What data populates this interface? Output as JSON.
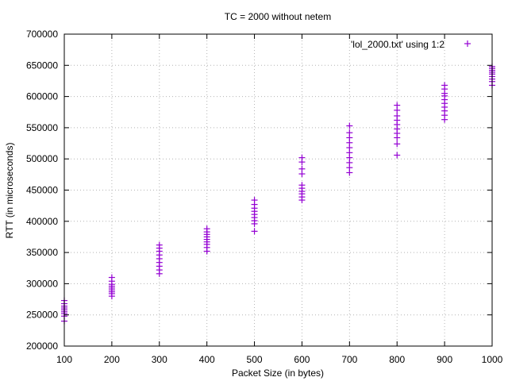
{
  "chart_data": {
    "type": "scatter",
    "title": "TC = 2000 without netem",
    "xlabel": "Packet Size (in bytes)",
    "ylabel": "RTT (in microseconds)",
    "xlim": [
      100,
      1000
    ],
    "ylim": [
      200000,
      700000
    ],
    "x_ticks": [
      "100",
      "200",
      "300",
      "400",
      "500",
      "600",
      "700",
      "800",
      "900",
      "1000"
    ],
    "y_ticks": [
      "200000",
      "250000",
      "300000",
      "350000",
      "400000",
      "450000",
      "500000",
      "550000",
      "600000",
      "650000",
      "700000"
    ],
    "grid": true,
    "legend_position": "top-right",
    "marker": "+",
    "series": [
      {
        "name": "'lol_2000.txt' using 1:2",
        "color": "#9400d3",
        "points": [
          [
            100,
            240000
          ],
          [
            100,
            248000
          ],
          [
            100,
            252000
          ],
          [
            100,
            255000
          ],
          [
            100,
            258000
          ],
          [
            100,
            261000
          ],
          [
            100,
            264000
          ],
          [
            100,
            268000
          ],
          [
            100,
            273000
          ],
          [
            200,
            280000
          ],
          [
            200,
            284000
          ],
          [
            200,
            287000
          ],
          [
            200,
            290000
          ],
          [
            200,
            293000
          ],
          [
            200,
            296000
          ],
          [
            200,
            299000
          ],
          [
            200,
            304000
          ],
          [
            200,
            310000
          ],
          [
            300,
            316000
          ],
          [
            300,
            322000
          ],
          [
            300,
            328000
          ],
          [
            300,
            334000
          ],
          [
            300,
            340000
          ],
          [
            300,
            346000
          ],
          [
            300,
            352000
          ],
          [
            300,
            357000
          ],
          [
            300,
            362000
          ],
          [
            400,
            352000
          ],
          [
            400,
            358000
          ],
          [
            400,
            363000
          ],
          [
            400,
            367000
          ],
          [
            400,
            371000
          ],
          [
            400,
            375000
          ],
          [
            400,
            379000
          ],
          [
            400,
            383000
          ],
          [
            400,
            388000
          ],
          [
            500,
            384000
          ],
          [
            500,
            396000
          ],
          [
            500,
            401000
          ],
          [
            500,
            406000
          ],
          [
            500,
            411000
          ],
          [
            500,
            416000
          ],
          [
            500,
            421000
          ],
          [
            500,
            427000
          ],
          [
            500,
            434000
          ],
          [
            600,
            434000
          ],
          [
            600,
            439000
          ],
          [
            600,
            444000
          ],
          [
            600,
            448000
          ],
          [
            600,
            453000
          ],
          [
            600,
            458000
          ],
          [
            600,
            476000
          ],
          [
            600,
            484000
          ],
          [
            600,
            495000
          ],
          [
            600,
            502000
          ],
          [
            700,
            478000
          ],
          [
            700,
            486000
          ],
          [
            700,
            494000
          ],
          [
            700,
            502000
          ],
          [
            700,
            510000
          ],
          [
            700,
            518000
          ],
          [
            700,
            526000
          ],
          [
            700,
            534000
          ],
          [
            700,
            542000
          ],
          [
            700,
            553000
          ],
          [
            800,
            506000
          ],
          [
            800,
            524000
          ],
          [
            800,
            534000
          ],
          [
            800,
            541000
          ],
          [
            800,
            548000
          ],
          [
            800,
            555000
          ],
          [
            800,
            562000
          ],
          [
            800,
            569000
          ],
          [
            800,
            578000
          ],
          [
            800,
            586000
          ],
          [
            900,
            563000
          ],
          [
            900,
            570000
          ],
          [
            900,
            577000
          ],
          [
            900,
            583000
          ],
          [
            900,
            589000
          ],
          [
            900,
            595000
          ],
          [
            900,
            601000
          ],
          [
            900,
            605000
          ],
          [
            900,
            612000
          ],
          [
            900,
            618000
          ],
          [
            1000,
            618000
          ],
          [
            1000,
            624000
          ],
          [
            1000,
            628000
          ],
          [
            1000,
            632000
          ],
          [
            1000,
            636000
          ],
          [
            1000,
            639000
          ],
          [
            1000,
            642000
          ],
          [
            1000,
            645000
          ],
          [
            1000,
            648000
          ]
        ]
      }
    ]
  }
}
